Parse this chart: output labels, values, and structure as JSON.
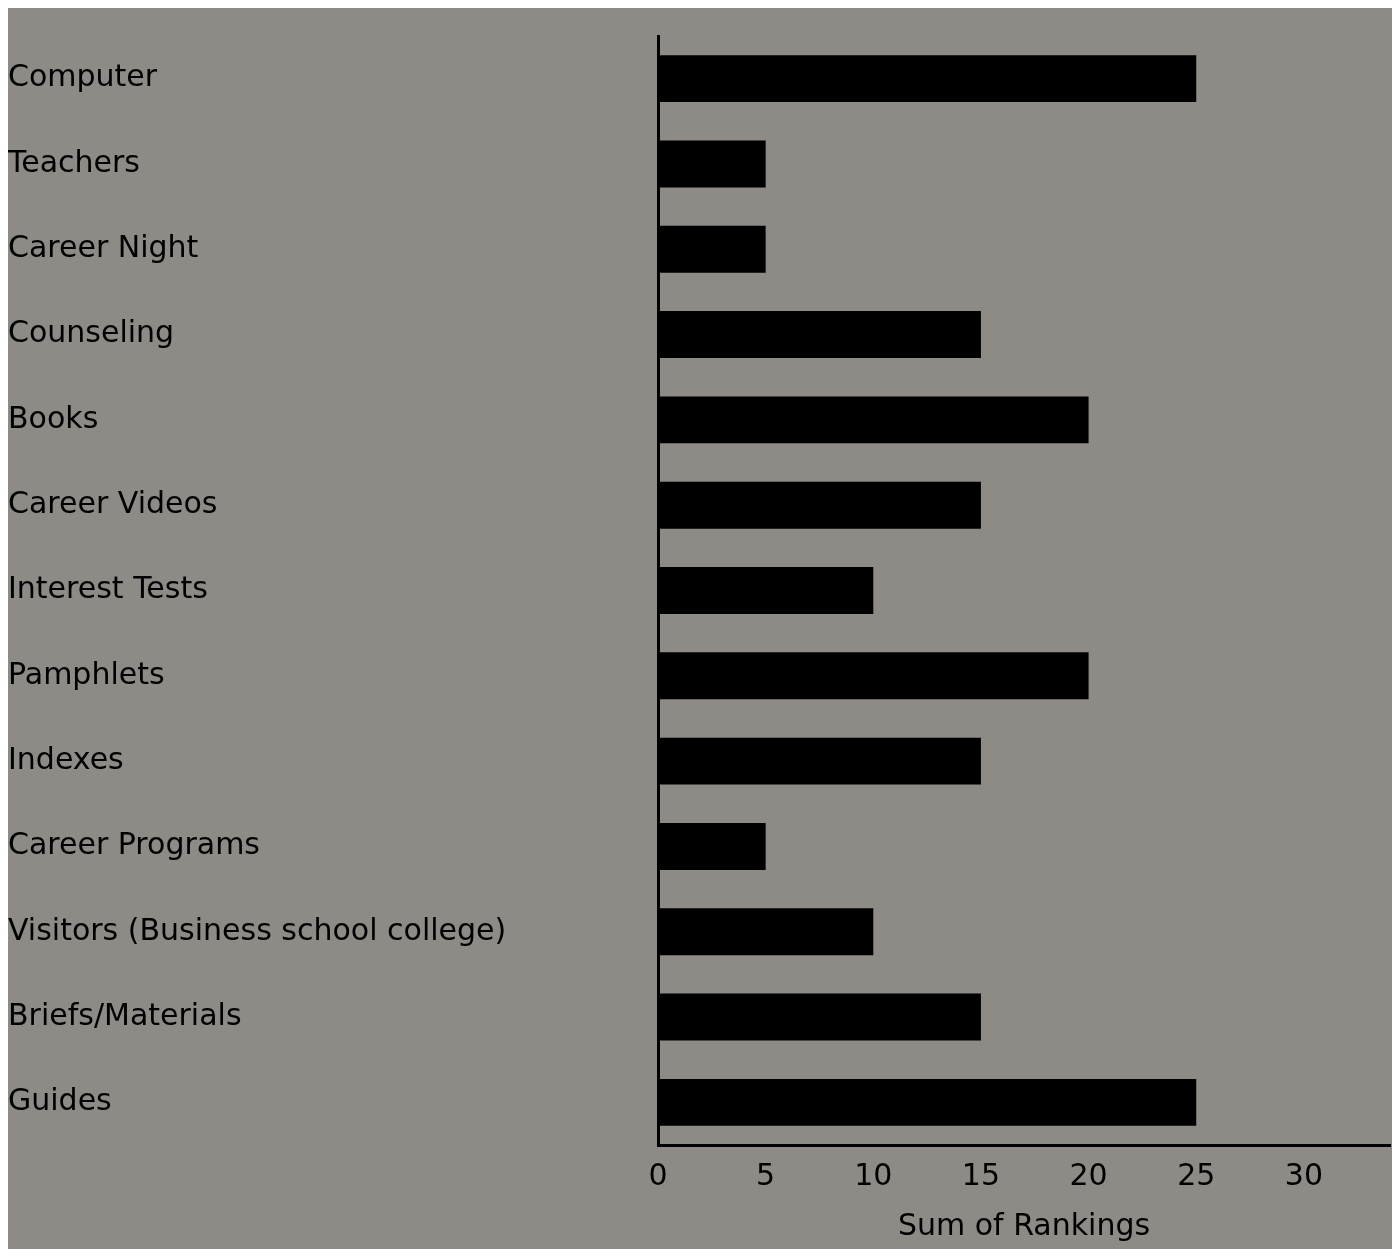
{
  "chart_data": {
    "type": "bar",
    "orientation": "horizontal",
    "xlabel": "Sum of Rankings",
    "categories": [
      "Computer",
      "Teachers",
      "Career Night",
      "Counseling",
      "Books",
      "Career Videos",
      "Interest Tests",
      "Pamphlets",
      "Indexes",
      "Career Programs",
      "Visitors (Business school college)",
      "Briefs/Materials",
      "Guides"
    ],
    "values": [
      25,
      5,
      5,
      15,
      20,
      15,
      10,
      20,
      15,
      5,
      10,
      15,
      25
    ],
    "color": "#000000",
    "xlim": [
      0,
      34
    ],
    "xticks": [
      0,
      5,
      10,
      15,
      20,
      25,
      30
    ],
    "grid": false,
    "legend": false
  }
}
